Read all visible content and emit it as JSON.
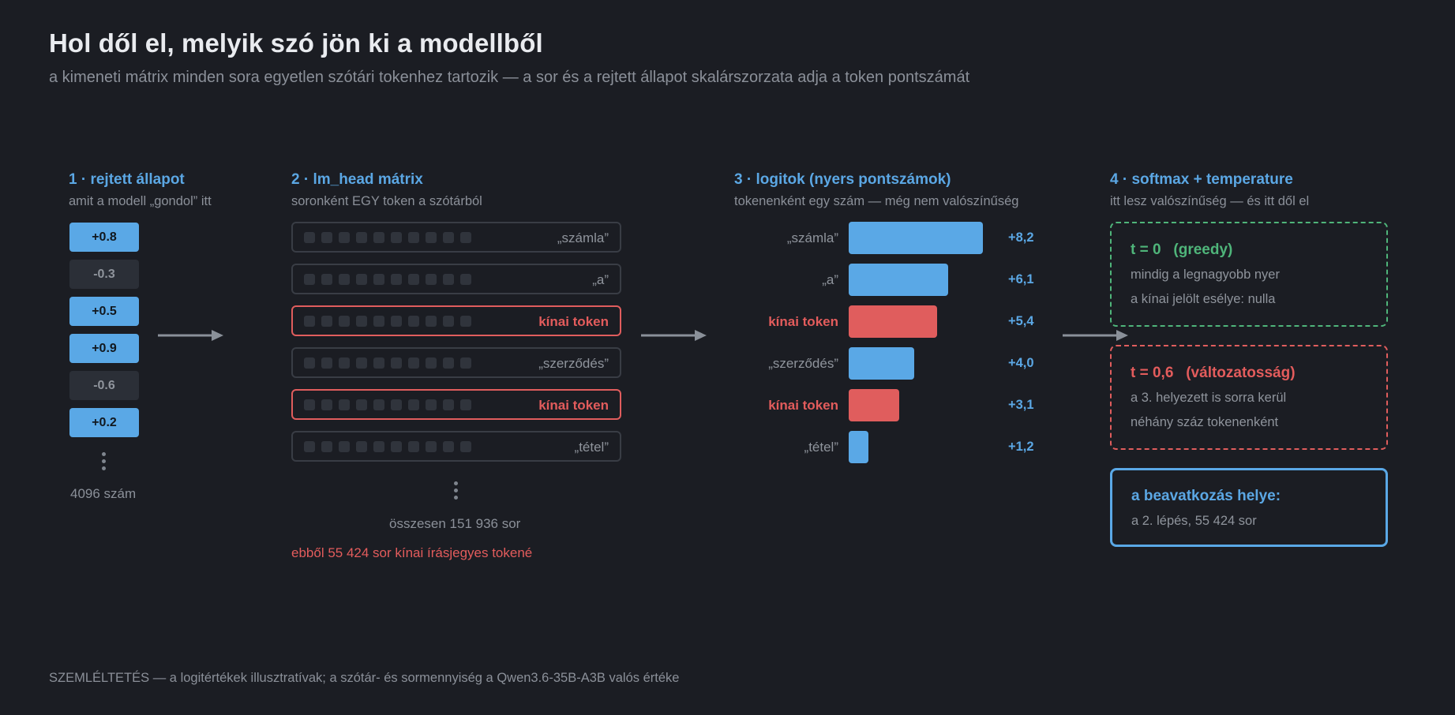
{
  "header": {
    "title": "Hol dől el, melyik szó jön ki a modellből",
    "subtitle": "a kimeneti mátrix minden sora egyetlen szótári tokenhez tartozik — a sor és a rejtett állapot skalárszorzata adja a token pontszámát"
  },
  "step1": {
    "title": "1 · rejtett állapot",
    "subtitle": "amit a modell „gondol” itt",
    "values": [
      "+0.8",
      "-0.3",
      "+0.5",
      "+0.9",
      "-0.6",
      "+0.2"
    ],
    "note": "4096 szám"
  },
  "step2": {
    "title": "2 · lm_head mátrix",
    "subtitle": "soronként EGY token a szótárból",
    "rows": [
      {
        "label": "„számla”",
        "highlight": false
      },
      {
        "label": "„a”",
        "highlight": false
      },
      {
        "label": "kínai token",
        "highlight": true
      },
      {
        "label": "„szerződés”",
        "highlight": false
      },
      {
        "label": "kínai token",
        "highlight": true
      },
      {
        "label": "„tétel”",
        "highlight": false
      }
    ],
    "total_note": "összesen 151 936 sor",
    "chinese_note": "ebből 55 424 sor kínai írásjegyes tokené"
  },
  "step3": {
    "title": "3 · logitok (nyers pontszámok)",
    "subtitle": "tokenenként egy szám — még nem valószínűség",
    "labels": [
      "„számla”",
      "„a”",
      "kínai token",
      "„szerződés”",
      "kínai token",
      "„tétel”"
    ],
    "value_labels": [
      "+8,2",
      "+6,1",
      "+5,4",
      "+4,0",
      "+3,1",
      "+1,2"
    ]
  },
  "chart_data": {
    "type": "bar",
    "categories": [
      "„számla”",
      "„a”",
      "kínai token",
      "„szerződés”",
      "kínai token",
      "„tétel”"
    ],
    "values": [
      8.2,
      6.1,
      5.4,
      4.0,
      3.1,
      1.2
    ],
    "highlight": [
      false,
      false,
      true,
      false,
      true,
      false
    ],
    "colors": {
      "normal": "#5aa8e6",
      "highlight": "#e05d5d"
    }
  },
  "step4": {
    "title": "4 · softmax + temperature",
    "subtitle": "itt lesz valószínűség — és itt dől el",
    "greedy": {
      "head": "t = 0   (greedy)",
      "line1": "mindig a legnagyobb nyer",
      "line2": "a kínai jelölt esélye: nulla"
    },
    "sampling": {
      "head": "t = 0,6   (változatosság)",
      "line1": "a 3. helyezett is sorra kerül",
      "line2": "néhány száz tokenenként"
    },
    "intervention": {
      "head": "a beavatkozás helye:",
      "line1": "a 2. lépés, 55 424 sor"
    }
  },
  "footer": {
    "text": "SZEMLÉLTETÉS — a logitértékek illusztratívak; a szótár- és sormennyiség a Qwen3.6-35B-A3B valós értéke"
  },
  "colors": {
    "background": "#1b1d23",
    "accent_blue": "#5aa8e6",
    "accent_red": "#e05d5d",
    "accent_green": "#4fb57a",
    "muted_text": "#8b9099"
  }
}
